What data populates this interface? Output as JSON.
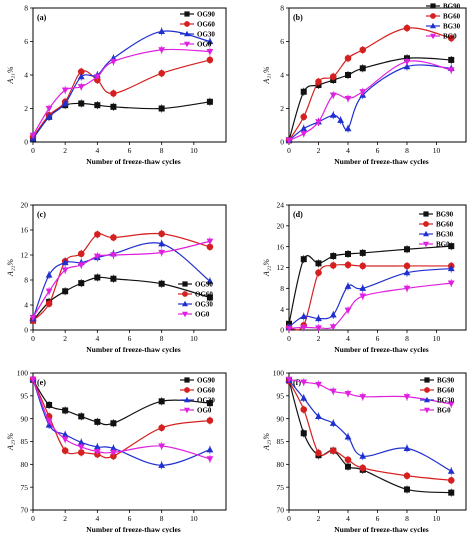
{
  "colors": {
    "black": "#111111",
    "red": "#d62020",
    "blue": "#1f2fd0",
    "magenta": "#e020e0"
  },
  "chart_data": [
    {
      "type": "line",
      "panel_label": "(a)",
      "xlabel": "Number of freeze-thaw cycles",
      "ylabel": "A₂₁%",
      "xlim": [
        0,
        12
      ],
      "ylim": [
        0,
        8
      ],
      "xticks": [
        0,
        2,
        4,
        6,
        8,
        10
      ],
      "yticks": [
        0,
        2,
        4,
        6,
        8
      ],
      "legend": "top-right",
      "series": [
        {
          "name": "OG90",
          "marker": "square",
          "color": "black",
          "x": [
            0,
            1,
            2,
            3,
            4,
            5,
            8,
            11
          ],
          "y": [
            0.2,
            1.5,
            2.2,
            2.3,
            2.2,
            2.1,
            2.0,
            2.4
          ]
        },
        {
          "name": "OG60",
          "marker": "circle",
          "color": "red",
          "x": [
            0,
            1,
            2,
            3,
            4,
            5,
            8,
            11
          ],
          "y": [
            0.3,
            1.6,
            2.4,
            4.2,
            3.7,
            2.9,
            4.1,
            4.9
          ]
        },
        {
          "name": "OG30",
          "marker": "triangle",
          "color": "blue",
          "x": [
            0,
            1,
            2,
            3,
            4,
            5,
            8,
            11
          ],
          "y": [
            0.2,
            1.5,
            2.3,
            3.9,
            4.0,
            5.0,
            6.6,
            6.0
          ]
        },
        {
          "name": "OG0",
          "marker": "triangle-down",
          "color": "magenta",
          "x": [
            0,
            1,
            2,
            3,
            4,
            5,
            8,
            11
          ],
          "y": [
            0.4,
            2.0,
            3.1,
            3.3,
            3.9,
            4.8,
            5.5,
            5.4
          ]
        }
      ]
    },
    {
      "type": "line",
      "panel_label": "(b)",
      "xlabel": "Number of freeze-thaw cycles",
      "ylabel": "A₂₁%",
      "xlim": [
        0,
        12
      ],
      "ylim": [
        0,
        8
      ],
      "xticks": [
        0,
        2,
        4,
        6,
        8,
        10
      ],
      "yticks": [
        0,
        2,
        4,
        6,
        8
      ],
      "legend": "top-right (outside)",
      "series": [
        {
          "name": "BG90",
          "marker": "square",
          "color": "black",
          "x": [
            0,
            1,
            2,
            3,
            4,
            5,
            8,
            11
          ],
          "y": [
            0.1,
            3.0,
            3.4,
            3.7,
            4.0,
            4.4,
            5.0,
            4.9
          ]
        },
        {
          "name": "BG60",
          "marker": "circle",
          "color": "red",
          "x": [
            0,
            1,
            2,
            3,
            4,
            5,
            8,
            11
          ],
          "y": [
            0.1,
            1.5,
            3.6,
            3.9,
            5.0,
            5.5,
            6.8,
            6.2
          ]
        },
        {
          "name": "BG30",
          "marker": "triangle",
          "color": "blue",
          "x": [
            0,
            1,
            2,
            3,
            3.5,
            4,
            5,
            8,
            11
          ],
          "y": [
            0.1,
            0.8,
            1.2,
            1.6,
            1.3,
            0.8,
            2.8,
            4.5,
            4.4
          ]
        },
        {
          "name": "BG0",
          "marker": "triangle-down",
          "color": "magenta",
          "x": [
            0,
            1,
            2,
            3,
            4,
            5,
            8,
            11
          ],
          "y": [
            0.1,
            0.5,
            1.2,
            2.8,
            2.6,
            3.0,
            4.8,
            4.3
          ]
        }
      ]
    },
    {
      "type": "line",
      "panel_label": "(c)",
      "xlabel": "Number of freeze-thaw cycles",
      "ylabel": "A₂₂%",
      "xlim": [
        0,
        12
      ],
      "ylim": [
        0,
        20
      ],
      "xticks": [
        0,
        2,
        4,
        6,
        8,
        10
      ],
      "yticks": [
        0,
        4,
        8,
        12,
        16,
        20
      ],
      "legend": "right",
      "series": [
        {
          "name": "OG90",
          "marker": "square",
          "color": "black",
          "x": [
            0,
            1,
            2,
            3,
            4,
            5,
            8,
            11
          ],
          "y": [
            1.5,
            4.5,
            6.2,
            7.5,
            8.4,
            8.2,
            7.4,
            5.2
          ]
        },
        {
          "name": "OG60",
          "marker": "circle",
          "color": "red",
          "x": [
            0,
            1,
            2,
            3,
            4,
            5,
            8,
            11
          ],
          "y": [
            1.5,
            4.2,
            11.0,
            12.2,
            15.3,
            14.8,
            15.4,
            13.3
          ]
        },
        {
          "name": "OG30",
          "marker": "triangle",
          "color": "blue",
          "x": [
            0,
            1,
            2,
            3,
            4,
            5,
            8,
            11
          ],
          "y": [
            1.8,
            8.8,
            10.8,
            10.8,
            11.6,
            12.2,
            13.8,
            7.8
          ]
        },
        {
          "name": "OG0",
          "marker": "triangle-down",
          "color": "magenta",
          "x": [
            0,
            1,
            2,
            3,
            4,
            5,
            8,
            11
          ],
          "y": [
            2.0,
            6.2,
            9.6,
            10.4,
            11.8,
            12.0,
            12.4,
            14.2
          ]
        }
      ]
    },
    {
      "type": "line",
      "panel_label": "(d)",
      "xlabel": "Number of freeze-thaw cycles",
      "ylabel": "A₂₂%",
      "xlim": [
        0,
        12
      ],
      "ylim": [
        0,
        24
      ],
      "xticks": [
        0,
        2,
        4,
        6,
        8,
        10
      ],
      "yticks": [
        0,
        4,
        8,
        12,
        16,
        20,
        24
      ],
      "legend": "top-right",
      "series": [
        {
          "name": "BG90",
          "marker": "square",
          "color": "black",
          "x": [
            0,
            1,
            2,
            3,
            4,
            5,
            8,
            11
          ],
          "y": [
            1.2,
            13.6,
            12.8,
            14.2,
            14.6,
            14.8,
            15.5,
            16.1
          ]
        },
        {
          "name": "BG60",
          "marker": "circle",
          "color": "red",
          "x": [
            0,
            1,
            2,
            3,
            4,
            5,
            8,
            11
          ],
          "y": [
            0.5,
            0.9,
            11.0,
            12.4,
            12.5,
            12.3,
            12.3,
            12.3
          ]
        },
        {
          "name": "BG30",
          "marker": "triangle",
          "color": "blue",
          "x": [
            0,
            1,
            2,
            3,
            4,
            5,
            8,
            11
          ],
          "y": [
            0.6,
            2.6,
            2.2,
            2.9,
            8.4,
            8.0,
            11.0,
            11.8
          ]
        },
        {
          "name": "BG0",
          "marker": "triangle-down",
          "color": "magenta",
          "x": [
            0,
            1,
            2,
            3,
            4,
            5,
            8,
            11
          ],
          "y": [
            0.3,
            0.5,
            0.4,
            0.6,
            3.8,
            6.5,
            8.0,
            9.0
          ]
        }
      ]
    },
    {
      "type": "line",
      "panel_label": "(e)",
      "xlabel": "Number of freeze-thaw cycles",
      "ylabel": "A₂₃%",
      "xlim": [
        0,
        12
      ],
      "ylim": [
        70,
        100
      ],
      "xticks": [
        0,
        2,
        4,
        6,
        8,
        10
      ],
      "yticks": [
        70,
        75,
        80,
        85,
        90,
        95,
        100
      ],
      "legend": "top-right",
      "series": [
        {
          "name": "OG90",
          "marker": "square",
          "color": "black",
          "x": [
            0,
            1,
            2,
            3,
            4,
            5,
            8,
            11
          ],
          "y": [
            98.5,
            93.0,
            91.8,
            90.5,
            89.3,
            89.0,
            93.8,
            93.4
          ]
        },
        {
          "name": "OG60",
          "marker": "circle",
          "color": "red",
          "x": [
            0,
            1,
            2,
            3,
            4,
            5,
            8,
            11
          ],
          "y": [
            98.6,
            90.5,
            83.0,
            82.6,
            82.2,
            81.8,
            88.0,
            89.6
          ]
        },
        {
          "name": "OG30",
          "marker": "triangle",
          "color": "blue",
          "x": [
            0,
            1,
            2,
            3,
            4,
            5,
            8,
            11
          ],
          "y": [
            98.6,
            88.6,
            86.5,
            84.8,
            83.8,
            83.5,
            79.8,
            83.2
          ]
        },
        {
          "name": "OG0",
          "marker": "triangle-down",
          "color": "magenta",
          "x": [
            0,
            1,
            2,
            3,
            4,
            5,
            8,
            11
          ],
          "y": [
            98.6,
            89.5,
            85.5,
            83.8,
            82.8,
            82.6,
            84.0,
            81.2
          ]
        }
      ]
    },
    {
      "type": "line",
      "panel_label": "(f)",
      "xlabel": "Number of freeze-thaw cycles",
      "ylabel": "A₂₃%",
      "xlim": [
        0,
        12
      ],
      "ylim": [
        70,
        100
      ],
      "xticks": [
        0,
        2,
        4,
        6,
        8,
        10
      ],
      "yticks": [
        70,
        75,
        80,
        85,
        90,
        95,
        100
      ],
      "legend": "top-right",
      "series": [
        {
          "name": "BG90",
          "marker": "square",
          "color": "black",
          "x": [
            0,
            1,
            2,
            3,
            4,
            5,
            8,
            11
          ],
          "y": [
            98.4,
            86.8,
            82.0,
            83.0,
            79.5,
            78.8,
            74.5,
            73.8
          ]
        },
        {
          "name": "BG60",
          "marker": "circle",
          "color": "red",
          "x": [
            0,
            1,
            2,
            3,
            4,
            5,
            8,
            11
          ],
          "y": [
            98.2,
            92.0,
            82.5,
            83.0,
            81.0,
            79.2,
            77.5,
            76.5
          ]
        },
        {
          "name": "BG30",
          "marker": "triangle",
          "color": "blue",
          "x": [
            0,
            1,
            2,
            3,
            4,
            5,
            8,
            11
          ],
          "y": [
            98.4,
            94.5,
            90.5,
            89.0,
            86.0,
            81.8,
            83.5,
            78.5
          ]
        },
        {
          "name": "BG0",
          "marker": "triangle-down",
          "color": "magenta",
          "x": [
            0,
            1,
            2,
            3,
            4,
            5,
            8,
            11
          ],
          "y": [
            98.6,
            98.0,
            97.5,
            96.0,
            95.5,
            94.8,
            94.8,
            93.2
          ]
        }
      ]
    }
  ]
}
